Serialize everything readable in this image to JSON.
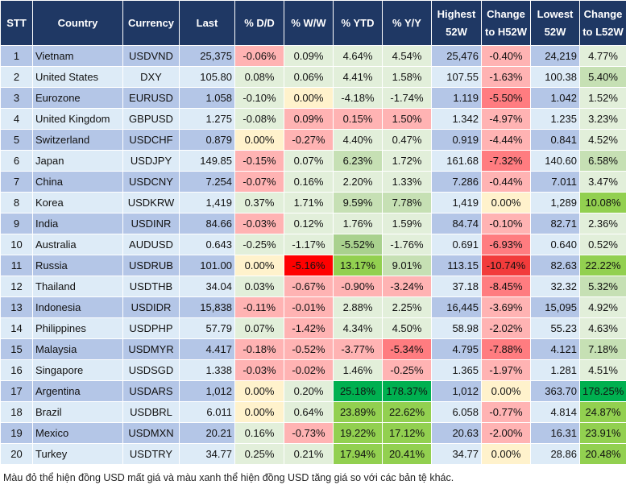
{
  "headers": [
    "STT",
    "Country",
    "Currency",
    "Last",
    "% D/D",
    "% W/W",
    "% YTD",
    "% Y/Y",
    "Highest 52W",
    "Change to H52W",
    "Lowest 52W",
    "Change to L52W"
  ],
  "colors": {
    "r1": "#FFB3B3",
    "r2": "#FF7C80",
    "r3": "#F23B3B",
    "r4": "#FF0000",
    "g0": "#E2EFDA",
    "g1": "#C6E0B4",
    "g2": "#A9D18E",
    "g3": "#92D050",
    "g4": "#00B050",
    "y": "#FFF2CC",
    "header": "#1F3864"
  },
  "rows": [
    {
      "stt": "1",
      "country": "Vietnam",
      "currency": "USDVND",
      "last": "25,375",
      "dd": "-0.06%",
      "ww": "0.09%",
      "ytd": "4.64%",
      "yy": "4.54%",
      "high": "25,476",
      "ch_high": "-0.40%",
      "low": "24,219",
      "ch_low": "4.77%",
      "heat": [
        "r1",
        "g0",
        "g0",
        "g0",
        "r1",
        "g0"
      ]
    },
    {
      "stt": "2",
      "country": "United States",
      "currency": "DXY",
      "last": "105.80",
      "dd": "0.08%",
      "ww": "0.06%",
      "ytd": "4.41%",
      "yy": "1.58%",
      "high": "107.55",
      "ch_high": "-1.63%",
      "low": "100.38",
      "ch_low": "5.40%",
      "heat": [
        "g0",
        "g0",
        "g0",
        "g0",
        "r1",
        "g1"
      ]
    },
    {
      "stt": "3",
      "country": "Eurozone",
      "currency": "EURUSD",
      "last": "1.058",
      "dd": "-0.10%",
      "ww": "0.00%",
      "ytd": "-4.18%",
      "yy": "-1.74%",
      "high": "1.119",
      "ch_high": "-5.50%",
      "low": "1.042",
      "ch_low": "1.52%",
      "heat": [
        "g0",
        "y",
        "g0",
        "g0",
        "r2",
        "g0"
      ]
    },
    {
      "stt": "4",
      "country": "United Kingdom",
      "currency": "GBPUSD",
      "last": "1.275",
      "dd": "-0.08%",
      "ww": "0.09%",
      "ytd": "0.15%",
      "yy": "1.50%",
      "high": "1.342",
      "ch_high": "-4.97%",
      "low": "1.235",
      "ch_low": "3.23%",
      "heat": [
        "g0",
        "r1",
        "r1",
        "r1",
        "r1",
        "g0"
      ]
    },
    {
      "stt": "5",
      "country": "Switzerland",
      "currency": "USDCHF",
      "last": "0.879",
      "dd": "0.00%",
      "ww": "-0.27%",
      "ytd": "4.40%",
      "yy": "0.47%",
      "high": "0.919",
      "ch_high": "-4.44%",
      "low": "0.841",
      "ch_low": "4.52%",
      "heat": [
        "y",
        "r1",
        "g0",
        "g0",
        "r1",
        "g0"
      ]
    },
    {
      "stt": "6",
      "country": "Japan",
      "currency": "USDJPY",
      "last": "149.85",
      "dd": "-0.15%",
      "ww": "0.07%",
      "ytd": "6.23%",
      "yy": "1.72%",
      "high": "161.68",
      "ch_high": "-7.32%",
      "low": "140.60",
      "ch_low": "6.58%",
      "heat": [
        "r1",
        "g0",
        "g1",
        "g0",
        "r2",
        "g1"
      ]
    },
    {
      "stt": "7",
      "country": "China",
      "currency": "USDCNY",
      "last": "7.254",
      "dd": "-0.07%",
      "ww": "0.16%",
      "ytd": "2.20%",
      "yy": "1.33%",
      "high": "7.286",
      "ch_high": "-0.44%",
      "low": "7.011",
      "ch_low": "3.47%",
      "heat": [
        "r1",
        "g0",
        "g0",
        "g0",
        "r1",
        "g0"
      ]
    },
    {
      "stt": "8",
      "country": "Korea",
      "currency": "USDKRW",
      "last": "1,419",
      "dd": "0.37%",
      "ww": "1.71%",
      "ytd": "9.59%",
      "yy": "7.78%",
      "high": "1,419",
      "ch_high": "0.00%",
      "low": "1,289",
      "ch_low": "10.08%",
      "heat": [
        "g0",
        "g0",
        "g1",
        "g1",
        "y",
        "g3"
      ]
    },
    {
      "stt": "9",
      "country": "India",
      "currency": "USDINR",
      "last": "84.66",
      "dd": "-0.03%",
      "ww": "0.12%",
      "ytd": "1.76%",
      "yy": "1.59%",
      "high": "84.74",
      "ch_high": "-0.10%",
      "low": "82.71",
      "ch_low": "2.36%",
      "heat": [
        "r1",
        "g0",
        "g0",
        "g0",
        "r1",
        "g0"
      ]
    },
    {
      "stt": "10",
      "country": "Australia",
      "currency": "AUDUSD",
      "last": "0.643",
      "dd": "-0.25%",
      "ww": "-1.17%",
      "ytd": "-5.52%",
      "yy": "-1.76%",
      "high": "0.691",
      "ch_high": "-6.93%",
      "low": "0.640",
      "ch_low": "0.52%",
      "heat": [
        "g0",
        "g0",
        "g2",
        "g0",
        "r2",
        "g0"
      ]
    },
    {
      "stt": "11",
      "country": "Russia",
      "currency": "USDRUB",
      "last": "101.00",
      "dd": "0.00%",
      "ww": "-5.16%",
      "ytd": "13.17%",
      "yy": "9.01%",
      "high": "113.15",
      "ch_high": "-10.74%",
      "low": "82.63",
      "ch_low": "22.22%",
      "heat": [
        "y",
        "r4",
        "g3",
        "g1",
        "r3",
        "g3"
      ]
    },
    {
      "stt": "12",
      "country": "Thailand",
      "currency": "USDTHB",
      "last": "34.04",
      "dd": "0.03%",
      "ww": "-0.67%",
      "ytd": "-0.90%",
      "yy": "-3.24%",
      "high": "37.18",
      "ch_high": "-8.45%",
      "low": "32.32",
      "ch_low": "5.32%",
      "heat": [
        "g0",
        "r1",
        "r1",
        "r1",
        "r2",
        "g1"
      ]
    },
    {
      "stt": "13",
      "country": "Indonesia",
      "currency": "USDIDR",
      "last": "15,838",
      "dd": "-0.11%",
      "ww": "-0.01%",
      "ytd": "2.88%",
      "yy": "2.25%",
      "high": "16,445",
      "ch_high": "-3.69%",
      "low": "15,095",
      "ch_low": "4.92%",
      "heat": [
        "r1",
        "r1",
        "g0",
        "g0",
        "r1",
        "g0"
      ]
    },
    {
      "stt": "14",
      "country": "Philippines",
      "currency": "USDPHP",
      "last": "57.79",
      "dd": "0.07%",
      "ww": "-1.42%",
      "ytd": "4.34%",
      "yy": "4.50%",
      "high": "58.98",
      "ch_high": "-2.02%",
      "low": "55.23",
      "ch_low": "4.63%",
      "heat": [
        "g0",
        "r1",
        "g0",
        "g0",
        "r1",
        "g0"
      ]
    },
    {
      "stt": "15",
      "country": "Malaysia",
      "currency": "USDMYR",
      "last": "4.417",
      "dd": "-0.18%",
      "ww": "-0.52%",
      "ytd": "-3.77%",
      "yy": "-5.34%",
      "high": "4.795",
      "ch_high": "-7.88%",
      "low": "4.121",
      "ch_low": "7.18%",
      "heat": [
        "r1",
        "r1",
        "r1",
        "r2",
        "r2",
        "g1"
      ]
    },
    {
      "stt": "16",
      "country": "Singapore",
      "currency": "USDSGD",
      "last": "1.338",
      "dd": "-0.03%",
      "ww": "-0.02%",
      "ytd": "1.46%",
      "yy": "-0.25%",
      "high": "1.365",
      "ch_high": "-1.97%",
      "low": "1.281",
      "ch_low": "4.51%",
      "heat": [
        "r1",
        "r1",
        "g0",
        "r1",
        "r1",
        "g0"
      ]
    },
    {
      "stt": "17",
      "country": "Argentina",
      "currency": "USDARS",
      "last": "1,012",
      "dd": "0.00%",
      "ww": "0.20%",
      "ytd": "25.18%",
      "yy": "178.37%",
      "high": "1,012",
      "ch_high": "0.00%",
      "low": "363.70",
      "ch_low": "178.25%",
      "heat": [
        "y",
        "g0",
        "g4",
        "g4",
        "y",
        "g4"
      ]
    },
    {
      "stt": "18",
      "country": "Brazil",
      "currency": "USDBRL",
      "last": "6.011",
      "dd": "0.00%",
      "ww": "0.64%",
      "ytd": "23.89%",
      "yy": "22.62%",
      "high": "6.058",
      "ch_high": "-0.77%",
      "low": "4.814",
      "ch_low": "24.87%",
      "heat": [
        "y",
        "g0",
        "g3",
        "g3",
        "r1",
        "g3"
      ]
    },
    {
      "stt": "19",
      "country": "Mexico",
      "currency": "USDMXN",
      "last": "20.21",
      "dd": "0.16%",
      "ww": "-0.73%",
      "ytd": "19.22%",
      "yy": "17.12%",
      "high": "20.63",
      "ch_high": "-2.00%",
      "low": "16.31",
      "ch_low": "23.91%",
      "heat": [
        "g0",
        "r1",
        "g3",
        "g3",
        "r1",
        "g3"
      ]
    },
    {
      "stt": "20",
      "country": "Turkey",
      "currency": "USDTRY",
      "last": "34.77",
      "dd": "0.25%",
      "ww": "0.21%",
      "ytd": "17.94%",
      "yy": "20.41%",
      "high": "34.77",
      "ch_high": "0.00%",
      "low": "28.86",
      "ch_low": "20.48%",
      "heat": [
        "g0",
        "g0",
        "g3",
        "g3",
        "y",
        "g3"
      ]
    }
  ],
  "note": "Màu đỏ thể hiện đồng USD mất giá và màu xanh thể hiện đồng USD tăng giá so với các bản tệ khác."
}
